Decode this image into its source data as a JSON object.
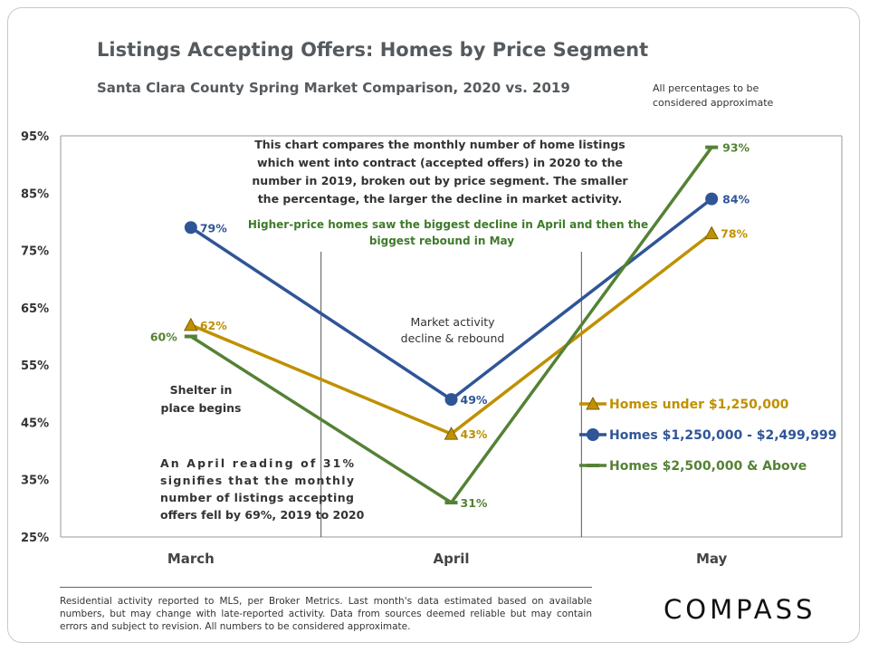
{
  "brand": "COMPASS",
  "footer_note": "Residential activity reported to MLS, per Broker Metrics. Last month's data estimated based on available numbers, but may change with late-reported activity. Data from sources deemed reliable but may contain errors and subject to revision. All numbers to be considered approximate.",
  "chart_data": {
    "type": "line",
    "title": "Listings Accepting Offers: Homes by Price Segment",
    "subtitle": "Santa Clara County Spring Market Comparison,  2020 vs. 2019",
    "top_note": [
      "All percentages to be",
      "considered approximate"
    ],
    "categories": [
      "March",
      "April",
      "May"
    ],
    "yticks": [
      "95%",
      "85%",
      "75%",
      "65%",
      "55%",
      "45%",
      "35%",
      "25%"
    ],
    "ylim": [
      25,
      95
    ],
    "grid": false,
    "legend_position": "right",
    "series": [
      {
        "name": "Homes under $1,250,000",
        "values": [
          62,
          43,
          78
        ],
        "labels": [
          "62%",
          "43%",
          "78%"
        ],
        "color": "#bf9000",
        "marker": "triangle"
      },
      {
        "name": "Homes $1,250,000 - $2,499,999",
        "values": [
          79,
          49,
          84
        ],
        "labels": [
          "79%",
          "49%",
          "84%"
        ],
        "color": "#2f5597",
        "marker": "circle"
      },
      {
        "name": "Homes $2,500,000 & Above",
        "values": [
          60,
          31,
          93
        ],
        "labels": [
          "60%",
          "31%",
          "93%"
        ],
        "color": "#548235",
        "marker": "dash"
      }
    ],
    "annotations": {
      "description": [
        "This chart compares the monthly number of home listings",
        "which went into contract (accepted offers) in 2020 to the",
        "number in 2019, broken out by price segment. The smaller",
        "the percentage, the larger the decline in market activity."
      ],
      "highlight": [
        "Higher-price homes saw the biggest decline in April and then the",
        "biggest rebound in May"
      ],
      "market": [
        "Market activity",
        "decline & rebound"
      ],
      "shelter": [
        "Shelter in",
        "place begins"
      ],
      "april_reading": [
        "An  April  reading  of  31%",
        "signifies  that  the  monthly",
        "number of listings accepting",
        "offers fell by 69%, 2019 to 2020"
      ]
    }
  }
}
